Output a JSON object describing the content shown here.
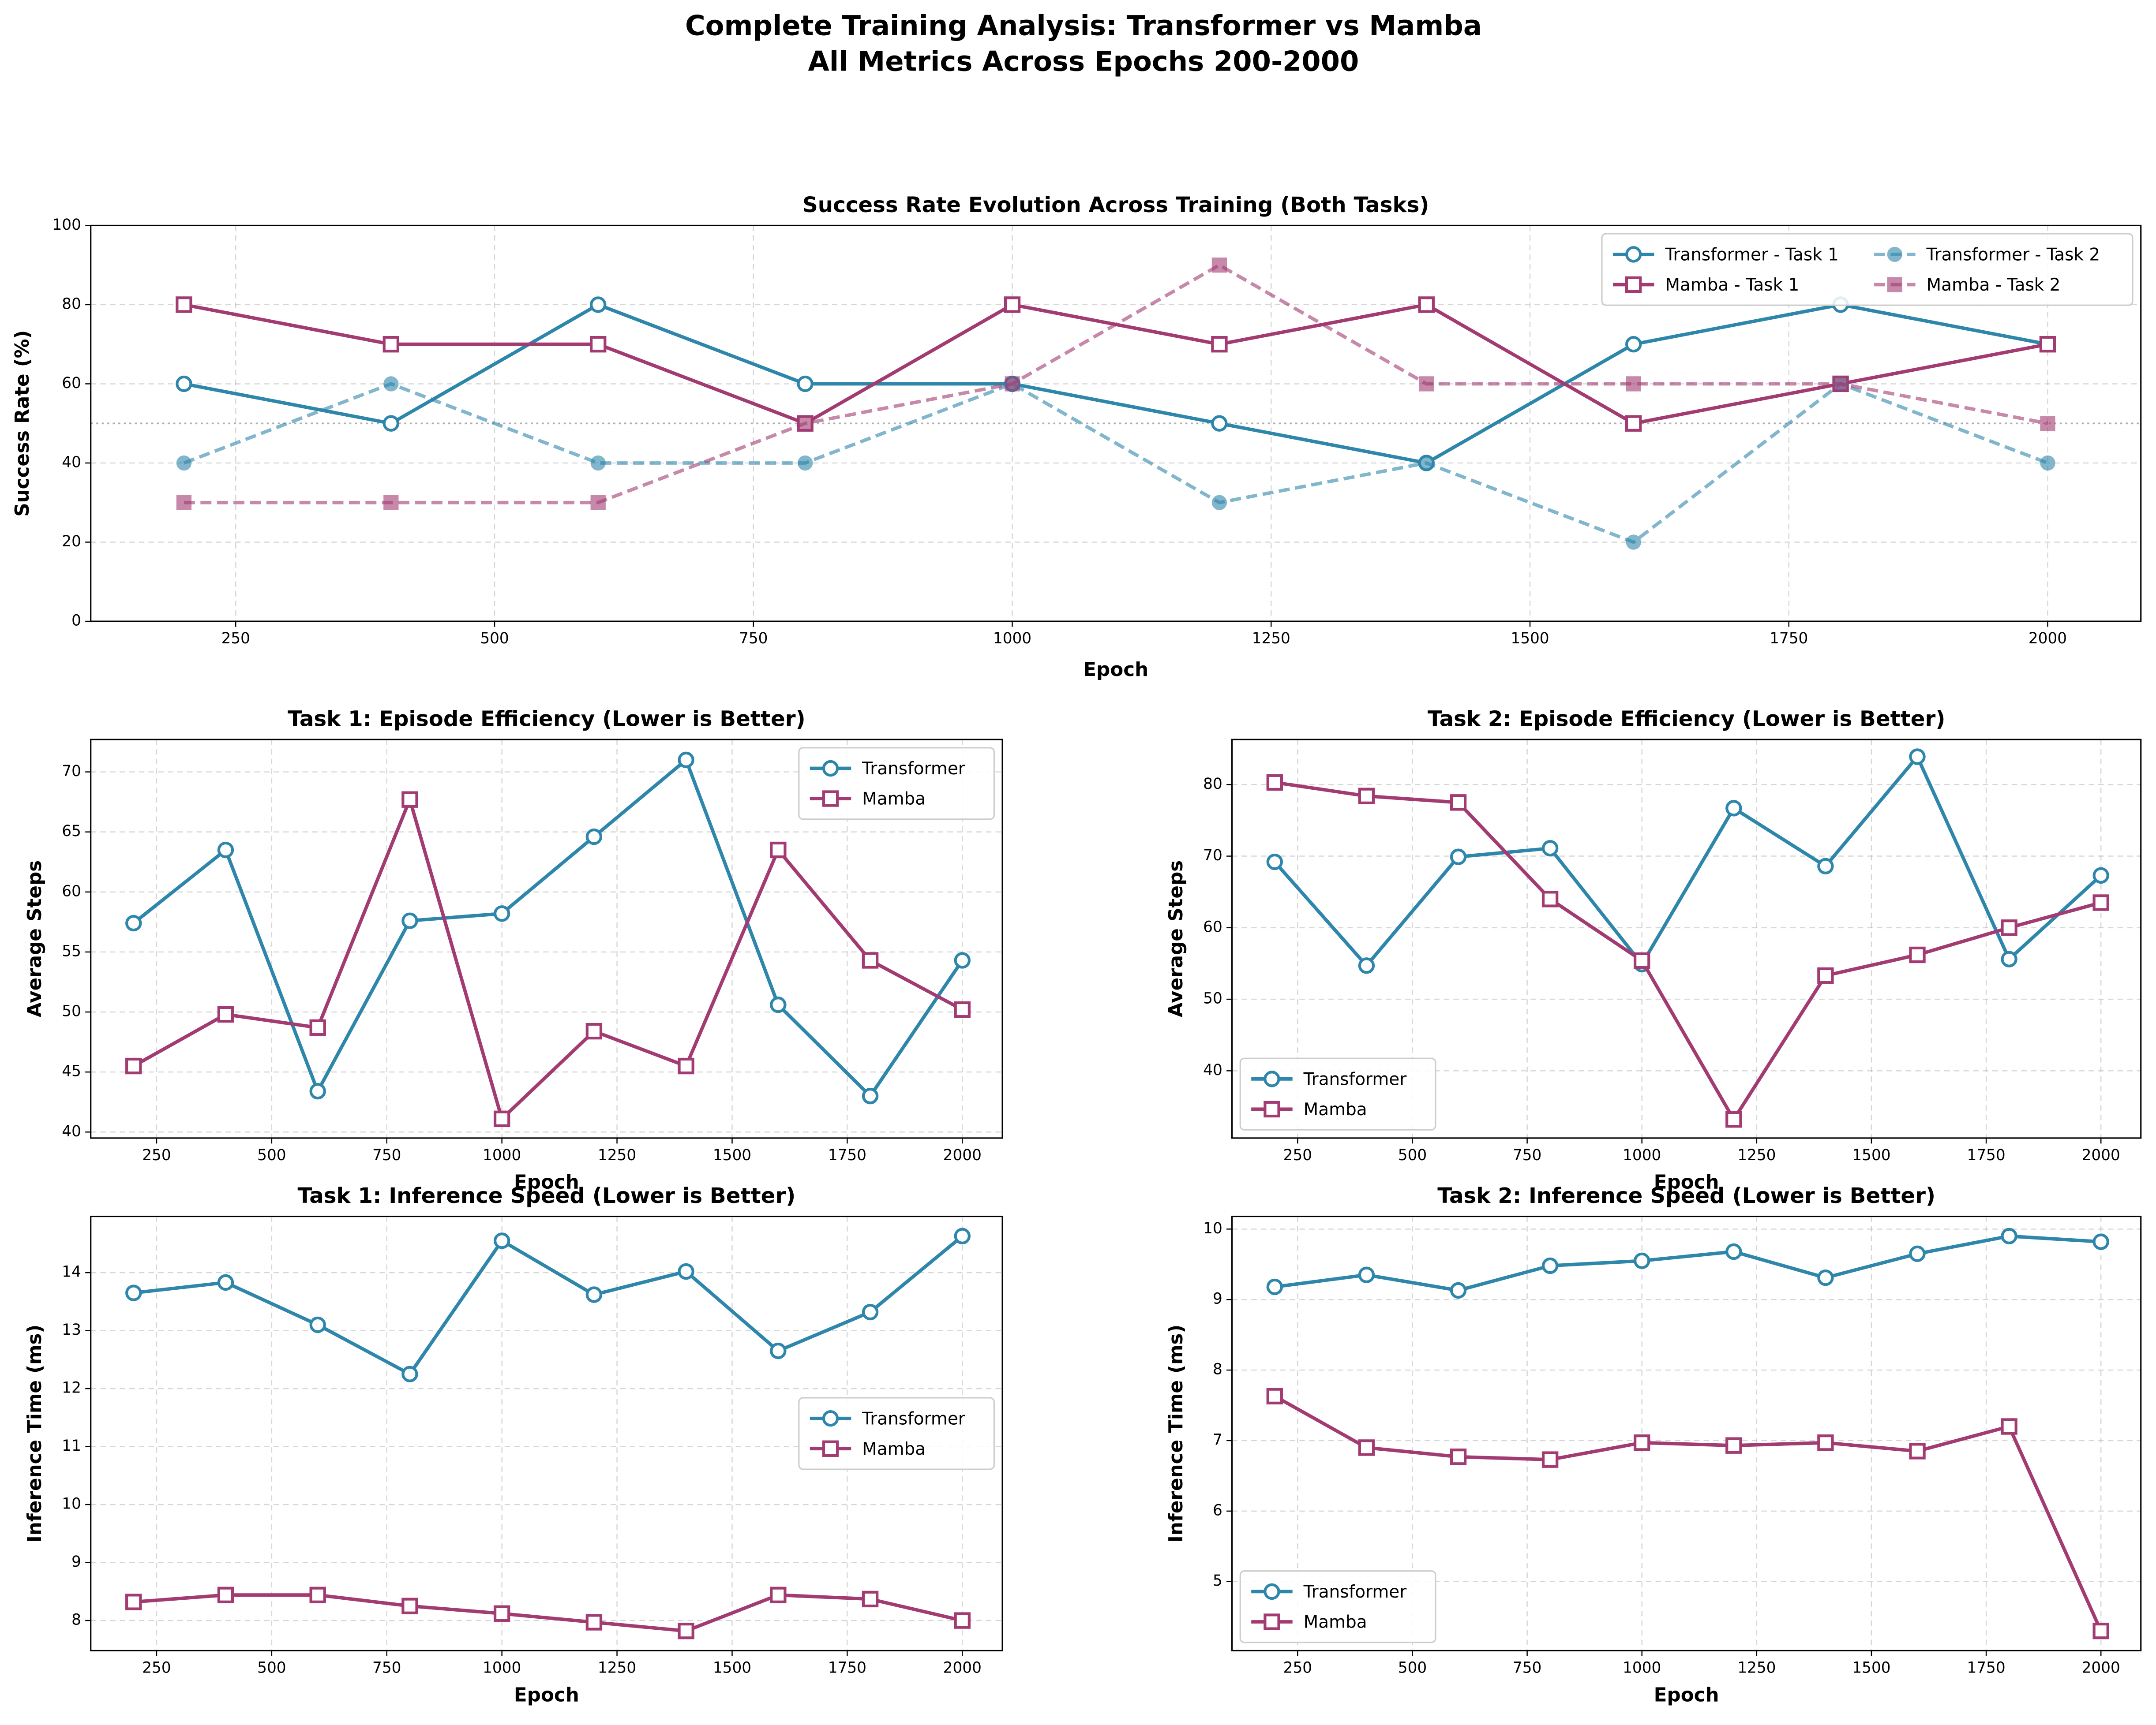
{
  "title": [
    "Complete Training Analysis: Transformer vs Mamba",
    "All Metrics Across Epochs 200-2000"
  ],
  "chart_data": [
    {
      "type": "line",
      "title": "Success Rate Evolution Across Training (Both Tasks)",
      "xlabel": "Epoch",
      "ylabel": "Success Rate (%)",
      "x": [
        200,
        400,
        600,
        800,
        1000,
        1200,
        1400,
        1600,
        1800,
        2000
      ],
      "xlim": [
        110,
        2090
      ],
      "xticks": [
        250,
        500,
        750,
        1000,
        1250,
        1500,
        1750,
        2000
      ],
      "ylim": [
        0,
        100
      ],
      "yticks": [
        0,
        20,
        40,
        60,
        80,
        100
      ],
      "grid": true,
      "hline": 50,
      "legend": "upper-right",
      "legend_columns": 2,
      "series": [
        {
          "name": "Transformer - Task 1",
          "color": "#2e86ab",
          "style": "solid",
          "marker": "circle",
          "marker_fill": "open",
          "values": [
            60,
            50,
            80,
            60,
            60,
            50,
            40,
            70,
            80,
            70
          ]
        },
        {
          "name": "Mamba - Task 1",
          "color": "#a23b72",
          "style": "solid",
          "marker": "square",
          "marker_fill": "open",
          "values": [
            80,
            70,
            70,
            50,
            80,
            70,
            80,
            50,
            60,
            70
          ]
        },
        {
          "name": "Transformer - Task 2",
          "color": "#2e86ab",
          "style": "dashed",
          "marker": "circle",
          "marker_fill": "filled",
          "values": [
            40,
            60,
            40,
            40,
            60,
            30,
            40,
            20,
            60,
            40
          ]
        },
        {
          "name": "Mamba - Task 2",
          "color": "#a23b72",
          "style": "dashed",
          "marker": "square",
          "marker_fill": "filled",
          "values": [
            30,
            30,
            30,
            50,
            60,
            90,
            60,
            60,
            60,
            50
          ]
        }
      ]
    },
    {
      "type": "line",
      "title": "Task 1: Episode Efficiency (Lower is Better)",
      "xlabel": "Epoch",
      "ylabel": "Average Steps",
      "x": [
        200,
        400,
        600,
        800,
        1000,
        1200,
        1400,
        1600,
        1800,
        2000
      ],
      "xlim": [
        107,
        2087
      ],
      "xticks": [
        250,
        500,
        750,
        1000,
        1250,
        1500,
        1750,
        2000
      ],
      "ylim": [
        39.5,
        72.7
      ],
      "yticks": [
        40,
        45,
        50,
        55,
        60,
        65,
        70
      ],
      "grid": true,
      "legend": "upper-right",
      "series": [
        {
          "name": "Transformer",
          "color": "#2e86ab",
          "style": "solid",
          "marker": "circle",
          "marker_fill": "open",
          "values": [
            57.4,
            63.5,
            43.4,
            57.6,
            58.2,
            64.6,
            71.0,
            50.6,
            43.0,
            54.3
          ]
        },
        {
          "name": "Mamba",
          "color": "#a23b72",
          "style": "solid",
          "marker": "square",
          "marker_fill": "open",
          "values": [
            45.5,
            49.8,
            48.7,
            67.7,
            41.1,
            48.4,
            45.5,
            63.5,
            54.3,
            50.2
          ]
        }
      ]
    },
    {
      "type": "line",
      "title": "Task 2: Episode Efficiency (Lower is Better)",
      "xlabel": "Epoch",
      "ylabel": "Average Steps",
      "x": [
        200,
        400,
        600,
        800,
        1000,
        1200,
        1400,
        1600,
        1800,
        2000
      ],
      "xlim": [
        107,
        2087
      ],
      "xticks": [
        250,
        500,
        750,
        1000,
        1250,
        1500,
        1750,
        2000
      ],
      "ylim": [
        30.6,
        86.3
      ],
      "yticks": [
        40,
        50,
        60,
        70,
        80
      ],
      "grid": true,
      "legend": "lower-left",
      "series": [
        {
          "name": "Transformer",
          "color": "#2e86ab",
          "style": "solid",
          "marker": "circle",
          "marker_fill": "open",
          "values": [
            69.2,
            54.7,
            69.9,
            71.1,
            54.9,
            76.7,
            68.6,
            83.9,
            55.6,
            67.3
          ]
        },
        {
          "name": "Mamba",
          "color": "#a23b72",
          "style": "solid",
          "marker": "square",
          "marker_fill": "open",
          "values": [
            80.3,
            78.4,
            77.5,
            64.0,
            55.4,
            33.2,
            53.3,
            56.2,
            60.0,
            63.5
          ]
        }
      ]
    },
    {
      "type": "line",
      "title": "Task 1: Inference Speed (Lower is Better)",
      "xlabel": "Epoch",
      "ylabel": "Inference Time (ms)",
      "x": [
        200,
        400,
        600,
        800,
        1000,
        1200,
        1400,
        1600,
        1800,
        2000
      ],
      "xlim": [
        107,
        2087
      ],
      "xticks": [
        250,
        500,
        750,
        1000,
        1250,
        1500,
        1750,
        2000
      ],
      "ylim": [
        7.48,
        14.97
      ],
      "yticks": [
        8,
        9,
        10,
        11,
        12,
        13,
        14
      ],
      "grid": true,
      "legend": "center-right",
      "series": [
        {
          "name": "Transformer",
          "color": "#2e86ab",
          "style": "solid",
          "marker": "circle",
          "marker_fill": "open",
          "values": [
            13.65,
            13.83,
            13.1,
            12.25,
            14.55,
            13.62,
            14.02,
            12.65,
            13.32,
            14.63
          ]
        },
        {
          "name": "Mamba",
          "color": "#a23b72",
          "style": "solid",
          "marker": "square",
          "marker_fill": "open",
          "values": [
            8.32,
            8.44,
            8.44,
            8.25,
            8.12,
            7.97,
            7.82,
            8.44,
            8.37,
            8.0
          ]
        }
      ]
    },
    {
      "type": "line",
      "title": "Task 2: Inference Speed (Lower is Better)",
      "xlabel": "Epoch",
      "ylabel": "Inference Time (ms)",
      "x": [
        200,
        400,
        600,
        800,
        1000,
        1200,
        1400,
        1600,
        1800,
        2000
      ],
      "xlim": [
        107,
        2087
      ],
      "xticks": [
        250,
        500,
        750,
        1000,
        1250,
        1500,
        1750,
        2000
      ],
      "ylim": [
        4.02,
        10.18
      ],
      "yticks": [
        5,
        6,
        7,
        8,
        9,
        10
      ],
      "grid": true,
      "legend": "lower-left",
      "series": [
        {
          "name": "Transformer",
          "color": "#2e86ab",
          "style": "solid",
          "marker": "circle",
          "marker_fill": "open",
          "values": [
            9.18,
            9.35,
            9.13,
            9.48,
            9.55,
            9.68,
            9.31,
            9.65,
            9.9,
            9.82
          ]
        },
        {
          "name": "Mamba",
          "color": "#a23b72",
          "style": "solid",
          "marker": "square",
          "marker_fill": "open",
          "values": [
            7.63,
            6.9,
            6.77,
            6.73,
            6.97,
            6.93,
            6.97,
            6.85,
            7.2,
            4.3
          ]
        }
      ]
    }
  ]
}
